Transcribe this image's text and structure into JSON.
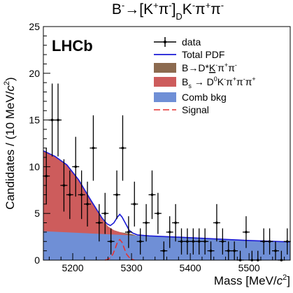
{
  "chart_data": {
    "type": "line",
    "title": "B⁻→[K⁺π⁻]_D K⁻π⁺π⁻",
    "title_parts": {
      "b": "B",
      "b_sup": "-",
      "arrow": "→",
      "lb": "[",
      "k": "K",
      "k_sup": "+",
      "pi": "π",
      "pi_sup": "-",
      "rb": "]",
      "sub": "D",
      "k2": "K",
      "k2_sup": "-",
      "pi2": "π",
      "pi2_sup": "+",
      "pi3": "π",
      "pi3_sup": "-"
    },
    "experiment_label": "LHCb",
    "xlabel_parts": {
      "main": "Mass [MeV/",
      "c": "c",
      "sup": "2",
      "close": "]"
    },
    "ylabel_parts": {
      "main": "Candidates / (10 MeV/",
      "c": "c",
      "sup": "2",
      "close": ")"
    },
    "xlim": [
      5150,
      5570
    ],
    "ylim": [
      0,
      25
    ],
    "x_ticks": [
      5200,
      5300,
      5400,
      5500
    ],
    "y_ticks": [
      0,
      5,
      10,
      15,
      20,
      25
    ],
    "x_tick_labels": [
      "5200",
      "5300",
      "5400",
      "5500"
    ],
    "y_tick_labels": [
      "0",
      "5",
      "10",
      "15",
      "20",
      "25"
    ],
    "legend_position": "top-right",
    "legend": {
      "data": "data",
      "total": "Total PDF",
      "dstar": {
        "a": "B→D*",
        "k": "K",
        "k_sup": "-",
        "pi": "π",
        "pi_sup": "+",
        "pi2": "π",
        "pi2_sup": "-"
      },
      "bs": {
        "a": "B",
        "a_sub": "s",
        "arrow": " → D",
        "d_sup": "0",
        "k": "K",
        "k_sup": "-",
        "pi": "π",
        "pi_sup": "+",
        "pi2": "π",
        "pi2_sup": "-",
        "pi3": "π",
        "pi3_sup": "+"
      },
      "comb": "Comb bkg",
      "signal": "Signal"
    },
    "colors": {
      "total": "#1a1ad6",
      "dstar": "#8c6a4f",
      "bs": "#cd5c5c",
      "comb": "#6f8fd6",
      "signal": "#e63232",
      "data": "#000000"
    },
    "data_points": {
      "x": [
        5155,
        5165,
        5175,
        5185,
        5195,
        5205,
        5215,
        5225,
        5235,
        5245,
        5255,
        5265,
        5275,
        5285,
        5295,
        5305,
        5315,
        5325,
        5335,
        5345,
        5355,
        5365,
        5375,
        5385,
        5395,
        5405,
        5415,
        5425,
        5435,
        5445,
        5455,
        5465,
        5475,
        5485,
        5495,
        5505,
        5515,
        5525,
        5535,
        5545,
        5555,
        5565
      ],
      "y": [
        9,
        15,
        15,
        8,
        7,
        10,
        7,
        6,
        12,
        4,
        5,
        2,
        7,
        12,
        3,
        6,
        2,
        4,
        7,
        5,
        1,
        3,
        4,
        2,
        2,
        2,
        2,
        2,
        1,
        4,
        2,
        1,
        1,
        0,
        3,
        0,
        0,
        2,
        2,
        1,
        0,
        2
      ],
      "err": [
        3.0,
        3.9,
        3.9,
        2.8,
        2.6,
        3.2,
        2.6,
        2.4,
        3.5,
        2.0,
        2.2,
        1.4,
        2.6,
        3.5,
        1.7,
        2.4,
        1.4,
        2.0,
        2.6,
        2.2,
        1.0,
        1.7,
        2.0,
        1.4,
        1.4,
        1.4,
        1.4,
        1.4,
        1.0,
        2.0,
        1.4,
        1.0,
        1.0,
        1.0,
        1.7,
        1.0,
        1.0,
        1.4,
        1.4,
        1.0,
        1.0,
        1.4
      ]
    },
    "series": [
      {
        "name": "Comb bkg",
        "x": [
          5150,
          5200,
          5250,
          5300,
          5350,
          5400,
          5450,
          5500,
          5570
        ],
        "y": [
          3.1,
          2.95,
          2.8,
          2.65,
          2.5,
          2.4,
          2.25,
          2.1,
          1.95
        ]
      },
      {
        "name": "Bs → D0K-π+π-π+ (stacked top)",
        "x": [
          5150,
          5170,
          5190,
          5210,
          5230,
          5250,
          5260,
          5270,
          5280,
          5290,
          5300,
          5570
        ],
        "y": [
          11.7,
          11.1,
          10.2,
          8.6,
          6.5,
          4.4,
          3.6,
          3.2,
          3.0,
          2.8,
          2.65,
          1.95
        ]
      },
      {
        "name": "B→D*K-π+π- (stacked top)",
        "x": [
          5150,
          5250,
          5260,
          5270,
          5280,
          5290,
          5300,
          5310,
          5320,
          5570
        ],
        "y": [
          11.7,
          4.4,
          3.6,
          3.2,
          3.0,
          2.9,
          2.8,
          2.6,
          2.6,
          1.95
        ]
      },
      {
        "name": "Signal",
        "x": [
          5255,
          5262,
          5268,
          5272,
          5276,
          5280,
          5284,
          5288,
          5292,
          5298,
          5305
        ],
        "y": [
          0,
          0.15,
          0.6,
          1.2,
          1.9,
          2.2,
          1.9,
          1.2,
          0.6,
          0.15,
          0
        ]
      },
      {
        "name": "Total PDF",
        "x": [
          5150,
          5170,
          5190,
          5210,
          5230,
          5250,
          5258,
          5264,
          5270,
          5276,
          5280,
          5284,
          5290,
          5296,
          5302,
          5310,
          5330,
          5400,
          5500,
          5570
        ],
        "y": [
          11.7,
          11.1,
          10.2,
          8.6,
          6.5,
          4.5,
          3.9,
          3.7,
          4.0,
          4.6,
          4.9,
          4.6,
          3.9,
          3.2,
          2.9,
          2.7,
          2.6,
          2.4,
          2.1,
          1.95
        ]
      }
    ]
  }
}
